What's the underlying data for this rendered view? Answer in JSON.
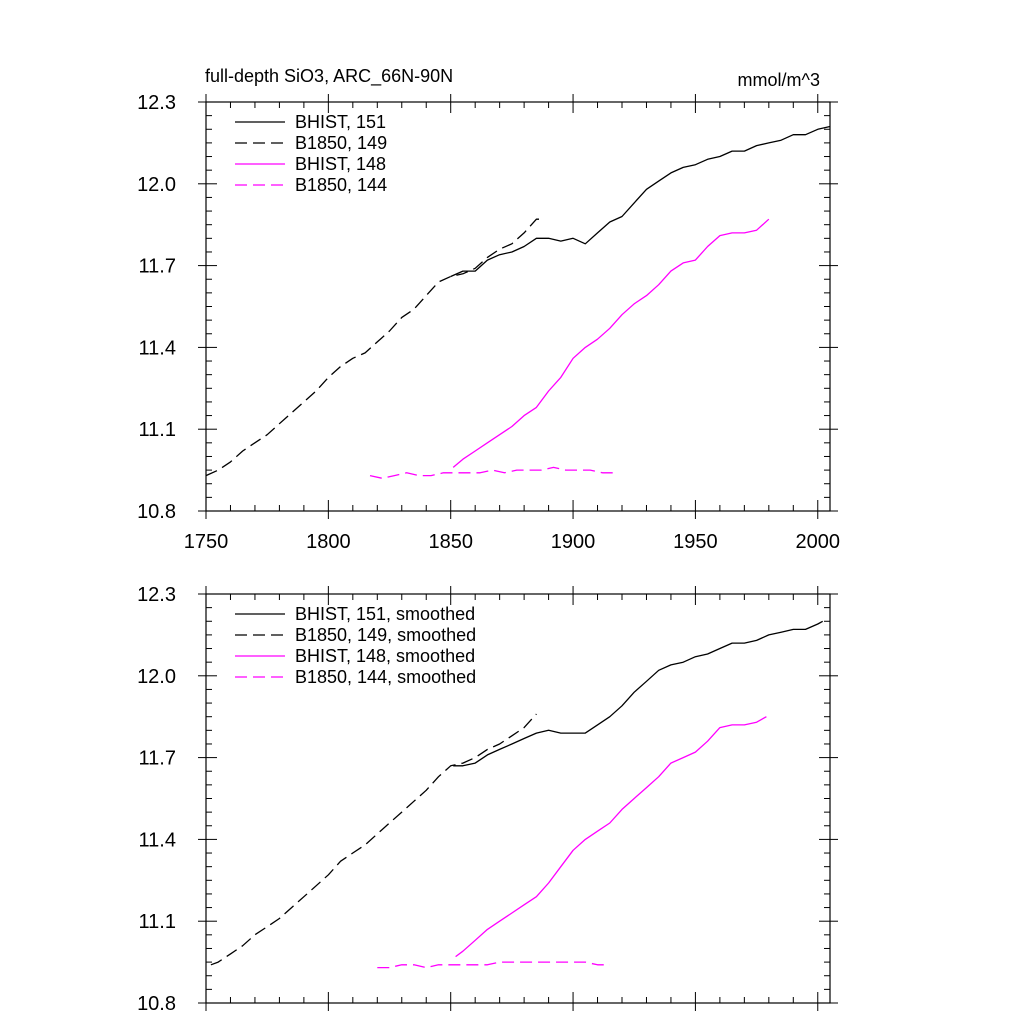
{
  "chart_data": [
    {
      "type": "line",
      "title": "full-depth SiO3, ARC_66N-90N",
      "units": "mmol/m^3",
      "xlim": [
        1750,
        2005
      ],
      "ylim": [
        10.8,
        12.3
      ],
      "xticks": [
        "1750",
        "1800",
        "1850",
        "1900",
        "1950",
        "2000"
      ],
      "yticks": [
        "10.8",
        "11.1",
        "11.4",
        "11.7",
        "12.0",
        "12.3"
      ],
      "legend_position": "top-left",
      "grid": false,
      "series": [
        {
          "name": "BHIST, 151",
          "color": "#000000",
          "dash": "solid",
          "points": [
            [
              1850,
              11.66
            ],
            [
              1855,
              11.68
            ],
            [
              1860,
              11.68
            ],
            [
              1865,
              11.72
            ],
            [
              1870,
              11.74
            ],
            [
              1875,
              11.75
            ],
            [
              1880,
              11.77
            ],
            [
              1885,
              11.8
            ],
            [
              1890,
              11.8
            ],
            [
              1895,
              11.79
            ],
            [
              1900,
              11.8
            ],
            [
              1905,
              11.78
            ],
            [
              1910,
              11.82
            ],
            [
              1915,
              11.86
            ],
            [
              1920,
              11.88
            ],
            [
              1925,
              11.93
            ],
            [
              1930,
              11.98
            ],
            [
              1935,
              12.01
            ],
            [
              1940,
              12.04
            ],
            [
              1945,
              12.06
            ],
            [
              1950,
              12.07
            ],
            [
              1955,
              12.09
            ],
            [
              1960,
              12.1
            ],
            [
              1965,
              12.12
            ],
            [
              1970,
              12.12
            ],
            [
              1975,
              12.14
            ],
            [
              1980,
              12.15
            ],
            [
              1985,
              12.16
            ],
            [
              1990,
              12.18
            ],
            [
              1995,
              12.18
            ],
            [
              2000,
              12.2
            ],
            [
              2005,
              12.21
            ]
          ]
        },
        {
          "name": "B1850, 149",
          "color": "#000000",
          "dash": "dashed",
          "points": [
            [
              1750,
              10.93
            ],
            [
              1755,
              10.95
            ],
            [
              1760,
              10.98
            ],
            [
              1765,
              11.02
            ],
            [
              1770,
              11.05
            ],
            [
              1775,
              11.08
            ],
            [
              1780,
              11.12
            ],
            [
              1785,
              11.16
            ],
            [
              1790,
              11.2
            ],
            [
              1795,
              11.24
            ],
            [
              1800,
              11.29
            ],
            [
              1805,
              11.33
            ],
            [
              1810,
              11.36
            ],
            [
              1815,
              11.38
            ],
            [
              1820,
              11.42
            ],
            [
              1825,
              11.46
            ],
            [
              1830,
              11.51
            ],
            [
              1835,
              11.54
            ],
            [
              1840,
              11.59
            ],
            [
              1845,
              11.64
            ],
            [
              1850,
              11.66
            ],
            [
              1855,
              11.67
            ],
            [
              1860,
              11.69
            ],
            [
              1865,
              11.73
            ],
            [
              1870,
              11.76
            ],
            [
              1875,
              11.78
            ],
            [
              1880,
              11.82
            ],
            [
              1885,
              11.87
            ],
            [
              1887,
              11.87
            ]
          ]
        },
        {
          "name": "BHIST, 148",
          "color": "#ff00ff",
          "dash": "solid",
          "points": [
            [
              1851,
              10.96
            ],
            [
              1855,
              10.99
            ],
            [
              1860,
              11.02
            ],
            [
              1865,
              11.05
            ],
            [
              1870,
              11.08
            ],
            [
              1875,
              11.11
            ],
            [
              1880,
              11.15
            ],
            [
              1885,
              11.18
            ],
            [
              1890,
              11.24
            ],
            [
              1895,
              11.29
            ],
            [
              1900,
              11.36
            ],
            [
              1905,
              11.4
            ],
            [
              1910,
              11.43
            ],
            [
              1915,
              11.47
            ],
            [
              1920,
              11.52
            ],
            [
              1925,
              11.56
            ],
            [
              1930,
              11.59
            ],
            [
              1935,
              11.63
            ],
            [
              1940,
              11.68
            ],
            [
              1945,
              11.71
            ],
            [
              1950,
              11.72
            ],
            [
              1955,
              11.77
            ],
            [
              1960,
              11.81
            ],
            [
              1965,
              11.82
            ],
            [
              1970,
              11.82
            ],
            [
              1975,
              11.83
            ],
            [
              1980,
              11.87
            ]
          ]
        },
        {
          "name": "B1850, 144",
          "color": "#ff00ff",
          "dash": "dashed",
          "points": [
            [
              1817,
              10.93
            ],
            [
              1822,
              10.92
            ],
            [
              1827,
              10.93
            ],
            [
              1832,
              10.94
            ],
            [
              1837,
              10.93
            ],
            [
              1842,
              10.93
            ],
            [
              1847,
              10.94
            ],
            [
              1852,
              10.94
            ],
            [
              1857,
              10.94
            ],
            [
              1862,
              10.94
            ],
            [
              1867,
              10.95
            ],
            [
              1872,
              10.94
            ],
            [
              1877,
              10.95
            ],
            [
              1882,
              10.95
            ],
            [
              1887,
              10.95
            ],
            [
              1892,
              10.96
            ],
            [
              1897,
              10.95
            ],
            [
              1902,
              10.95
            ],
            [
              1907,
              10.95
            ],
            [
              1912,
              10.94
            ],
            [
              1917,
              10.94
            ]
          ]
        }
      ]
    },
    {
      "type": "line",
      "xlim": [
        1750,
        2005
      ],
      "ylim": [
        10.8,
        12.3
      ],
      "yticks": [
        "10.8",
        "11.1",
        "11.4",
        "11.7",
        "12.0",
        "12.3"
      ],
      "legend_position": "top-left",
      "grid": false,
      "series": [
        {
          "name": "BHIST, 151, smoothed",
          "color": "#000000",
          "dash": "solid",
          "points": [
            [
              1851,
              11.67
            ],
            [
              1855,
              11.67
            ],
            [
              1860,
              11.68
            ],
            [
              1865,
              11.71
            ],
            [
              1870,
              11.73
            ],
            [
              1875,
              11.75
            ],
            [
              1880,
              11.77
            ],
            [
              1885,
              11.79
            ],
            [
              1890,
              11.8
            ],
            [
              1895,
              11.79
            ],
            [
              1900,
              11.79
            ],
            [
              1905,
              11.79
            ],
            [
              1910,
              11.82
            ],
            [
              1915,
              11.85
            ],
            [
              1920,
              11.89
            ],
            [
              1925,
              11.94
            ],
            [
              1930,
              11.98
            ],
            [
              1935,
              12.02
            ],
            [
              1940,
              12.04
            ],
            [
              1945,
              12.05
            ],
            [
              1950,
              12.07
            ],
            [
              1955,
              12.08
            ],
            [
              1960,
              12.1
            ],
            [
              1965,
              12.12
            ],
            [
              1970,
              12.12
            ],
            [
              1975,
              12.13
            ],
            [
              1980,
              12.15
            ],
            [
              1985,
              12.16
            ],
            [
              1990,
              12.17
            ],
            [
              1995,
              12.17
            ],
            [
              2000,
              12.19
            ],
            [
              2002,
              12.2
            ]
          ]
        },
        {
          "name": "B1850, 149, smoothed",
          "color": "#000000",
          "dash": "dashed",
          "points": [
            [
              1752,
              10.94
            ],
            [
              1755,
              10.95
            ],
            [
              1760,
              10.98
            ],
            [
              1765,
              11.01
            ],
            [
              1770,
              11.05
            ],
            [
              1775,
              11.08
            ],
            [
              1780,
              11.11
            ],
            [
              1785,
              11.15
            ],
            [
              1790,
              11.19
            ],
            [
              1795,
              11.23
            ],
            [
              1800,
              11.27
            ],
            [
              1805,
              11.32
            ],
            [
              1810,
              11.35
            ],
            [
              1815,
              11.38
            ],
            [
              1820,
              11.42
            ],
            [
              1825,
              11.46
            ],
            [
              1830,
              11.5
            ],
            [
              1835,
              11.54
            ],
            [
              1840,
              11.58
            ],
            [
              1845,
              11.63
            ],
            [
              1850,
              11.67
            ],
            [
              1855,
              11.68
            ],
            [
              1860,
              11.7
            ],
            [
              1865,
              11.73
            ],
            [
              1870,
              11.75
            ],
            [
              1875,
              11.78
            ],
            [
              1880,
              11.81
            ],
            [
              1885,
              11.86
            ]
          ]
        },
        {
          "name": "BHIST, 148, smoothed",
          "color": "#ff00ff",
          "dash": "solid",
          "points": [
            [
              1852,
              10.97
            ],
            [
              1855,
              10.99
            ],
            [
              1860,
              11.03
            ],
            [
              1865,
              11.07
            ],
            [
              1870,
              11.1
            ],
            [
              1875,
              11.13
            ],
            [
              1880,
              11.16
            ],
            [
              1885,
              11.19
            ],
            [
              1890,
              11.24
            ],
            [
              1895,
              11.3
            ],
            [
              1900,
              11.36
            ],
            [
              1905,
              11.4
            ],
            [
              1910,
              11.43
            ],
            [
              1915,
              11.46
            ],
            [
              1920,
              11.51
            ],
            [
              1925,
              11.55
            ],
            [
              1930,
              11.59
            ],
            [
              1935,
              11.63
            ],
            [
              1940,
              11.68
            ],
            [
              1945,
              11.7
            ],
            [
              1950,
              11.72
            ],
            [
              1955,
              11.76
            ],
            [
              1960,
              11.81
            ],
            [
              1965,
              11.82
            ],
            [
              1970,
              11.82
            ],
            [
              1975,
              11.83
            ],
            [
              1979,
              11.85
            ]
          ]
        },
        {
          "name": "B1850, 144, smoothed",
          "color": "#ff00ff",
          "dash": "dashed",
          "points": [
            [
              1820,
              10.93
            ],
            [
              1825,
              10.93
            ],
            [
              1830,
              10.94
            ],
            [
              1835,
              10.94
            ],
            [
              1840,
              10.93
            ],
            [
              1845,
              10.94
            ],
            [
              1850,
              10.94
            ],
            [
              1855,
              10.94
            ],
            [
              1860,
              10.94
            ],
            [
              1865,
              10.94
            ],
            [
              1870,
              10.95
            ],
            [
              1875,
              10.95
            ],
            [
              1880,
              10.95
            ],
            [
              1885,
              10.95
            ],
            [
              1890,
              10.95
            ],
            [
              1895,
              10.95
            ],
            [
              1900,
              10.95
            ],
            [
              1905,
              10.95
            ],
            [
              1910,
              10.94
            ],
            [
              1915,
              10.94
            ]
          ]
        }
      ]
    }
  ]
}
